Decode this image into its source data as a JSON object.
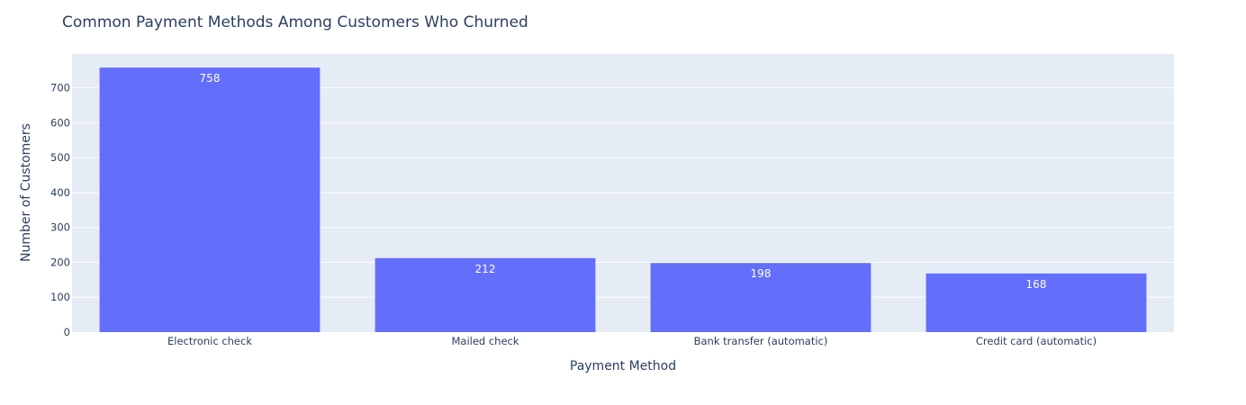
{
  "chart_data": {
    "type": "bar",
    "title": "Common Payment Methods Among Customers Who Churned",
    "xlabel": "Payment Method",
    "ylabel": "Number of Customers",
    "categories": [
      "Electronic check",
      "Mailed check",
      "Bank transfer (automatic)",
      "Credit card (automatic)"
    ],
    "values": [
      758,
      212,
      198,
      168
    ],
    "ylim": [
      0,
      797
    ],
    "yticks": [
      0,
      100,
      200,
      300,
      400,
      500,
      600,
      700
    ],
    "grid": true,
    "legend": "none",
    "colors": {
      "bar": "#636efa",
      "plot_bg": "#e5ecf6",
      "grid": "#ffffff",
      "text": "#2a3f5f"
    }
  }
}
